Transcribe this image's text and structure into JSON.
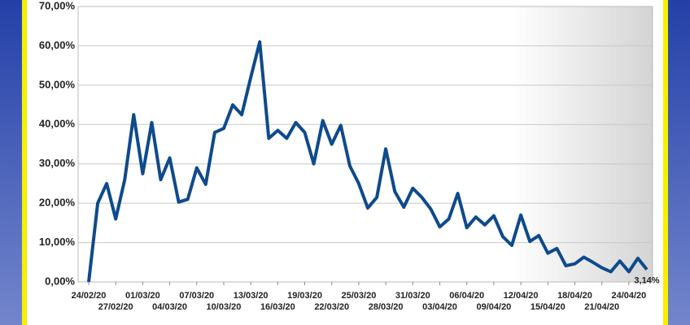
{
  "chart_data": {
    "type": "line",
    "categories": [
      "24/02/20",
      null,
      null,
      "27/02/20",
      null,
      null,
      "01/03/20",
      null,
      null,
      "04/03/20",
      null,
      null,
      "07/03/20",
      null,
      null,
      "10/03/20",
      null,
      null,
      "13/03/20",
      null,
      null,
      "16/03/20",
      null,
      null,
      "19/03/20",
      null,
      null,
      "22/03/20",
      null,
      null,
      "25/03/20",
      null,
      null,
      "28/03/20",
      null,
      null,
      "31/03/20",
      null,
      null,
      "03/04/20",
      null,
      null,
      "06/04/20",
      null,
      null,
      "09/04/20",
      null,
      null,
      "12/04/20",
      null,
      null,
      "15/04/20",
      null,
      null,
      "18/04/20",
      null,
      null,
      "21/04/20",
      null,
      null,
      "24/04/20",
      null,
      null
    ],
    "values": [
      0,
      20,
      25,
      16,
      26,
      42.5,
      27.5,
      40.5,
      26,
      31.5,
      20.3,
      21,
      29,
      24.8,
      38,
      39,
      45,
      42.5,
      52,
      61,
      36.5,
      38.5,
      36.5,
      40.5,
      38,
      30,
      41,
      35,
      39.8,
      29.5,
      25,
      18.8,
      21.5,
      33.8,
      23,
      19,
      23.8,
      21.5,
      18.5,
      14,
      16,
      22.5,
      13.8,
      16.5,
      14.5,
      16.8,
      11.5,
      9.3,
      17,
      10.3,
      11.8,
      7.3,
      8.5,
      4.1,
      4.6,
      6.3,
      5,
      3.6,
      2.6,
      5.3,
      2.6,
      6,
      3.14
    ],
    "value_labels": [
      null,
      null,
      null,
      null,
      null,
      null,
      null,
      null,
      null,
      null,
      null,
      null,
      null,
      null,
      null,
      null,
      null,
      null,
      null,
      null,
      null,
      null,
      null,
      null,
      null,
      null,
      null,
      null,
      null,
      null,
      null,
      null,
      null,
      null,
      null,
      null,
      null,
      null,
      null,
      null,
      null,
      null,
      null,
      null,
      null,
      null,
      null,
      null,
      null,
      null,
      null,
      null,
      null,
      null,
      null,
      null,
      null,
      null,
      null,
      null,
      null,
      null,
      "3,14%"
    ],
    "color": "#0e4a8c",
    "ylim": [
      0,
      70
    ],
    "yticks": [
      {
        "value": 0,
        "label": "0,00%"
      },
      {
        "value": 10,
        "label": "10,00%"
      },
      {
        "value": 20,
        "label": "20,00%"
      },
      {
        "value": 30,
        "label": "30,00%"
      },
      {
        "value": 40,
        "label": "40,00%"
      },
      {
        "value": 50,
        "label": "50,00%"
      },
      {
        "value": 60,
        "label": "60,00%"
      },
      {
        "value": 70,
        "label": "70,00%"
      }
    ],
    "grid": true
  }
}
